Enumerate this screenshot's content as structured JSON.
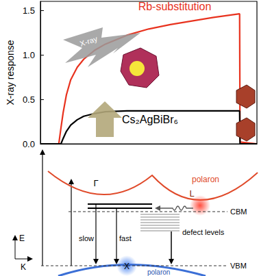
{
  "chart_data": {
    "type": "line",
    "y_label": "X-ray response",
    "x": [
      0,
      0.85,
      0.95,
      1.05,
      1.2,
      1.4,
      1.7,
      2,
      2.5,
      3,
      4,
      5,
      6,
      7,
      8,
      9.2,
      9.22,
      10
    ],
    "xlim": [
      0,
      10
    ],
    "ylim": [
      0,
      1.6
    ],
    "yticks": [
      {
        "value": 0,
        "label": "0.0"
      },
      {
        "value": 0.5,
        "label": "0.5"
      },
      {
        "value": 1,
        "label": "1.0"
      },
      {
        "value": 1.5,
        "label": "1.5"
      }
    ],
    "tick_labels": "y",
    "grid": false,
    "series": [
      {
        "name": "Rb-substitution",
        "color": "#e8321e",
        "values": [
          0,
          0,
          0.18,
          0.35,
          0.55,
          0.72,
          0.86,
          0.95,
          1.05,
          1.12,
          1.22,
          1.29,
          1.34,
          1.38,
          1.42,
          1.46,
          0.02,
          0
        ]
      },
      {
        "name": "Cs₂AgBiBr₆",
        "color": "#000000",
        "values": [
          0,
          0,
          0,
          0.06,
          0.14,
          0.21,
          0.27,
          0.31,
          0.34,
          0.36,
          0.37,
          0.37,
          0.37,
          0.37,
          0.37,
          0.37,
          0,
          0
        ]
      }
    ],
    "annotations": [
      "X-ray"
    ]
  },
  "diagram": {
    "labels": {
      "gamma": "Γ",
      "l_point": "L",
      "cb_polaron": "polaron",
      "cbm": "CBM",
      "slow": "slow",
      "fast": "fast",
      "defect_levels": "defect levels",
      "vbm": "VBM",
      "x_point": "X",
      "vb_polaron": "polaron",
      "energy_axis": "E",
      "k_axis": "K"
    }
  }
}
